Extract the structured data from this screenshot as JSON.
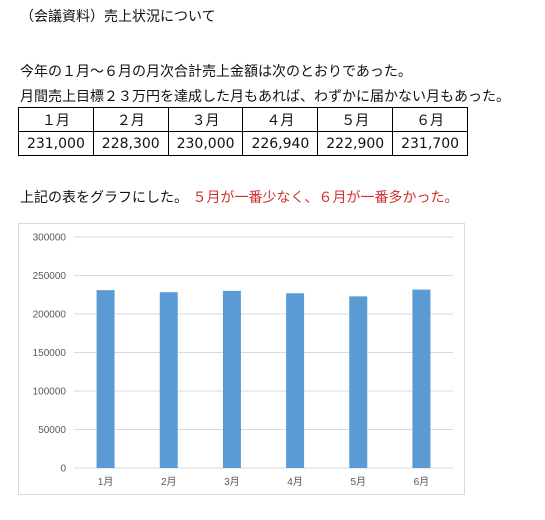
{
  "document": {
    "title": "（会議資料）売上状況について",
    "paragraph1": "今年の１月～６月の月次合計売上金額は次のとおりであった。",
    "paragraph2": "月間売上目標２３万円を達成した月もあれば、わずかに届かない月もあった。",
    "paragraph3_prefix": "上記の表をグラフにした。",
    "paragraph3_highlight": "５月が一番少なく、６月が一番多かった。",
    "highlight_color": "#d0312d"
  },
  "table": {
    "headers": [
      "１月",
      "２月",
      "３月",
      "４月",
      "５月",
      "６月"
    ],
    "values": [
      "231,000",
      "228,300",
      "230,000",
      "226,940",
      "222,900",
      "231,700"
    ]
  },
  "chart_data": {
    "type": "bar",
    "categories": [
      "1月",
      "2月",
      "3月",
      "4月",
      "5月",
      "6月"
    ],
    "values": [
      231000,
      228300,
      230000,
      226940,
      222900,
      231700
    ],
    "ylim": [
      0,
      300000
    ],
    "yticks": [
      "0",
      "50000",
      "100000",
      "150000",
      "200000",
      "250000",
      "300000"
    ],
    "grid": true,
    "bar_color": "#5b9bd5",
    "grid_color": "#d9d9d9",
    "legend": "none"
  }
}
